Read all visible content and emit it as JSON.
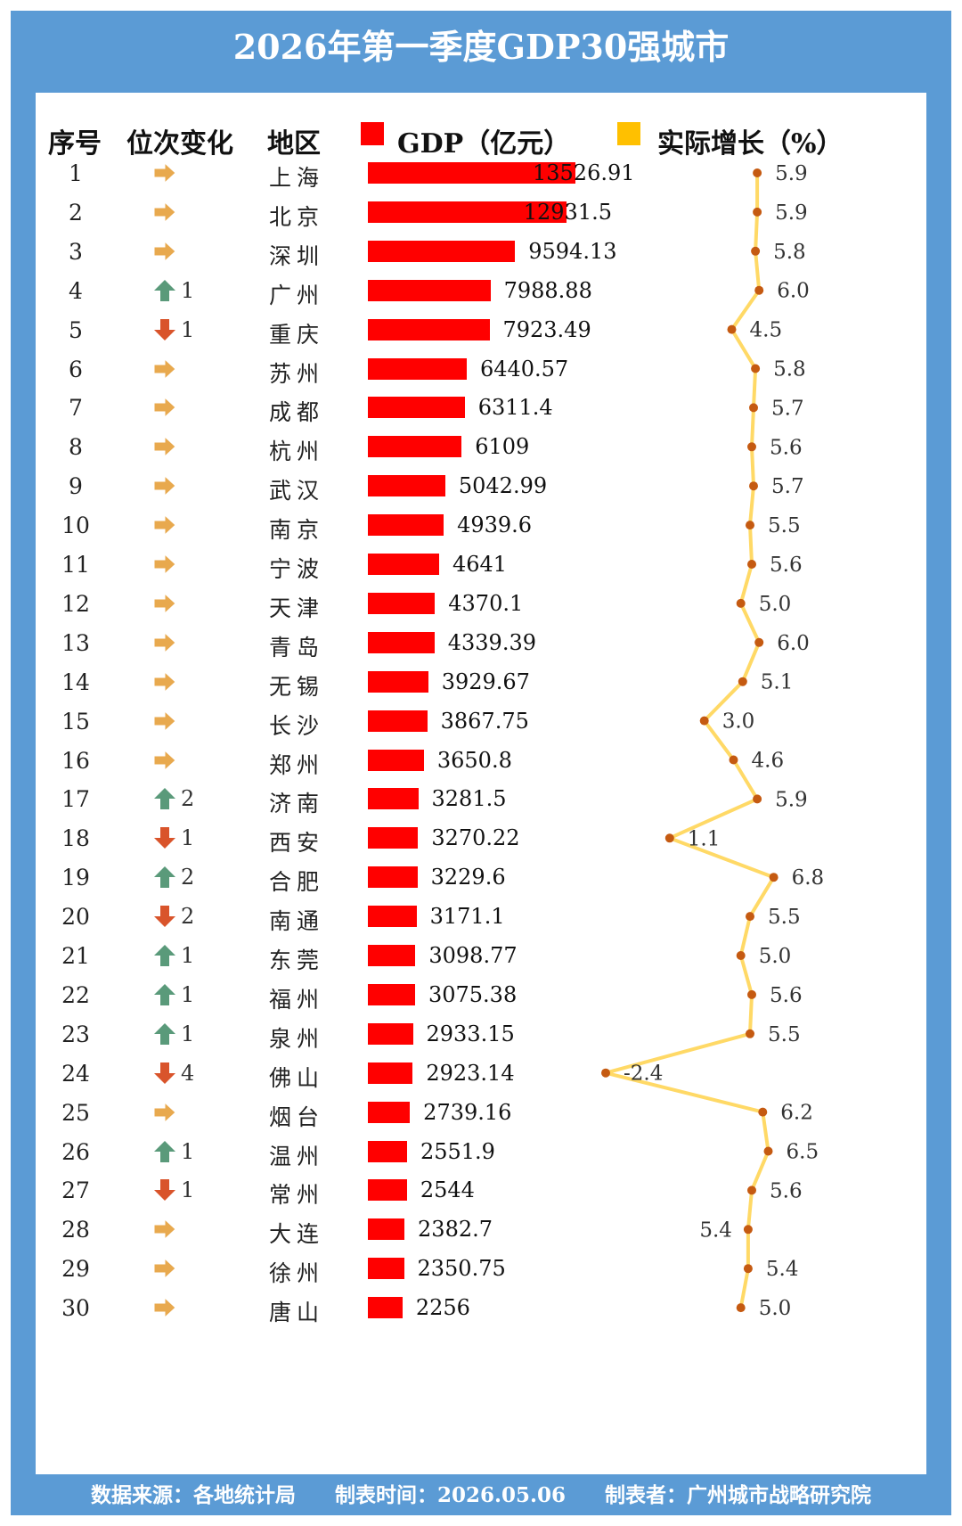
{
  "title": "2026年第一季度GDP30强城市",
  "headers": {
    "rank": "序号",
    "change": "位次变化",
    "region": "地区",
    "gdp": "GDP（亿元）",
    "growth": "实际增长（%）"
  },
  "colors": {
    "frame": "#5b9bd5",
    "bar": "#ff0000",
    "line": "#ffd966",
    "marker": "#c55a11",
    "up": "#5a9a7a",
    "down": "#d9542b",
    "same": "#e8a94e"
  },
  "rows": [
    {
      "rank": "1",
      "dir": "same",
      "change": "",
      "city": "上海",
      "gdp": "13526.91",
      "growth": "5.9"
    },
    {
      "rank": "2",
      "dir": "same",
      "change": "",
      "city": "北京",
      "gdp": "12931.5",
      "growth": "5.9"
    },
    {
      "rank": "3",
      "dir": "same",
      "change": "",
      "city": "深圳",
      "gdp": "9594.13",
      "growth": "5.8"
    },
    {
      "rank": "4",
      "dir": "up",
      "change": "1",
      "city": "广州",
      "gdp": "7988.88",
      "growth": "6.0"
    },
    {
      "rank": "5",
      "dir": "down",
      "change": "1",
      "city": "重庆",
      "gdp": "7923.49",
      "growth": "4.5"
    },
    {
      "rank": "6",
      "dir": "same",
      "change": "",
      "city": "苏州",
      "gdp": "6440.57",
      "growth": "5.8"
    },
    {
      "rank": "7",
      "dir": "same",
      "change": "",
      "city": "成都",
      "gdp": "6311.4",
      "growth": "5.7"
    },
    {
      "rank": "8",
      "dir": "same",
      "change": "",
      "city": "杭州",
      "gdp": "6109",
      "growth": "5.6"
    },
    {
      "rank": "9",
      "dir": "same",
      "change": "",
      "city": "武汉",
      "gdp": "5042.99",
      "growth": "5.7"
    },
    {
      "rank": "10",
      "dir": "same",
      "change": "",
      "city": "南京",
      "gdp": "4939.6",
      "growth": "5.5"
    },
    {
      "rank": "11",
      "dir": "same",
      "change": "",
      "city": "宁波",
      "gdp": "4641",
      "growth": "5.6"
    },
    {
      "rank": "12",
      "dir": "same",
      "change": "",
      "city": "天津",
      "gdp": "4370.1",
      "growth": "5.0"
    },
    {
      "rank": "13",
      "dir": "same",
      "change": "",
      "city": "青岛",
      "gdp": "4339.39",
      "growth": "6.0"
    },
    {
      "rank": "14",
      "dir": "same",
      "change": "",
      "city": "无锡",
      "gdp": "3929.67",
      "growth": "5.1"
    },
    {
      "rank": "15",
      "dir": "same",
      "change": "",
      "city": "长沙",
      "gdp": "3867.75",
      "growth": "3.0"
    },
    {
      "rank": "16",
      "dir": "same",
      "change": "",
      "city": "郑州",
      "gdp": "3650.8",
      "growth": "4.6"
    },
    {
      "rank": "17",
      "dir": "up",
      "change": "2",
      "city": "济南",
      "gdp": "3281.5",
      "growth": "5.9"
    },
    {
      "rank": "18",
      "dir": "down",
      "change": "1",
      "city": "西安",
      "gdp": "3270.22",
      "growth": "1.1"
    },
    {
      "rank": "19",
      "dir": "up",
      "change": "2",
      "city": "合肥",
      "gdp": "3229.6",
      "growth": "6.8"
    },
    {
      "rank": "20",
      "dir": "down",
      "change": "2",
      "city": "南通",
      "gdp": "3171.1",
      "growth": "5.5"
    },
    {
      "rank": "21",
      "dir": "up",
      "change": "1",
      "city": "东莞",
      "gdp": "3098.77",
      "growth": "5.0"
    },
    {
      "rank": "22",
      "dir": "up",
      "change": "1",
      "city": "福州",
      "gdp": "3075.38",
      "growth": "5.6"
    },
    {
      "rank": "23",
      "dir": "up",
      "change": "1",
      "city": "泉州",
      "gdp": "2933.15",
      "growth": "5.5"
    },
    {
      "rank": "24",
      "dir": "down",
      "change": "4",
      "city": "佛山",
      "gdp": "2923.14",
      "growth": "-2.4"
    },
    {
      "rank": "25",
      "dir": "same",
      "change": "",
      "city": "烟台",
      "gdp": "2739.16",
      "growth": "6.2"
    },
    {
      "rank": "26",
      "dir": "up",
      "change": "1",
      "city": "温州",
      "gdp": "2551.9",
      "growth": "6.5"
    },
    {
      "rank": "27",
      "dir": "down",
      "change": "1",
      "city": "常州",
      "gdp": "2544",
      "growth": "5.6"
    },
    {
      "rank": "28",
      "dir": "same",
      "change": "",
      "city": "大连",
      "gdp": "2382.7",
      "growth": "5.4"
    },
    {
      "rank": "29",
      "dir": "same",
      "change": "",
      "city": "徐州",
      "gdp": "2350.75",
      "growth": "5.4"
    },
    {
      "rank": "30",
      "dir": "same",
      "change": "",
      "city": "唐山",
      "gdp": "2256",
      "growth": "5.0"
    }
  ],
  "chart_data": {
    "type": "bar",
    "title": "2026年第一季度GDP30强城市",
    "categories": [
      "上海",
      "北京",
      "深圳",
      "广州",
      "重庆",
      "苏州",
      "成都",
      "杭州",
      "武汉",
      "南京",
      "宁波",
      "天津",
      "青岛",
      "无锡",
      "长沙",
      "郑州",
      "济南",
      "西安",
      "合肥",
      "南通",
      "东莞",
      "福州",
      "泉州",
      "佛山",
      "烟台",
      "温州",
      "常州",
      "大连",
      "徐州",
      "唐山"
    ],
    "series": [
      {
        "name": "GDP（亿元）",
        "type": "bar",
        "values": [
          13526.91,
          12931.5,
          9594.13,
          7988.88,
          7923.49,
          6440.57,
          6311.4,
          6109,
          5042.99,
          4939.6,
          4641,
          4370.1,
          4339.39,
          3929.67,
          3867.75,
          3650.8,
          3281.5,
          3270.22,
          3229.6,
          3171.1,
          3098.77,
          3075.38,
          2933.15,
          2923.14,
          2739.16,
          2551.9,
          2544,
          2382.7,
          2350.75,
          2256
        ]
      },
      {
        "name": "实际增长（%）",
        "type": "line",
        "values": [
          5.9,
          5.9,
          5.8,
          6.0,
          4.5,
          5.8,
          5.7,
          5.6,
          5.7,
          5.5,
          5.6,
          5.0,
          6.0,
          5.1,
          3.0,
          4.6,
          5.9,
          1.1,
          6.8,
          5.5,
          5.0,
          5.6,
          5.5,
          -2.4,
          6.2,
          6.5,
          5.6,
          5.4,
          5.4,
          5.0
        ]
      }
    ],
    "legend_placement": "top"
  },
  "footer": {
    "source": "数据来源：各地统计局",
    "time": "制表时间：2026.05.06",
    "author": "制表者：广州城市战略研究院"
  }
}
